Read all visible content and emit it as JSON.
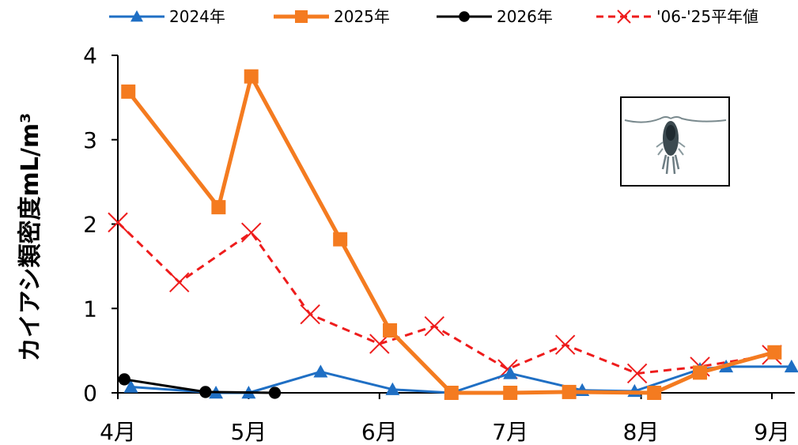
{
  "chart_data": {
    "type": "line",
    "ylabel": "カイアシ類密度mL/m³",
    "ylim": [
      0,
      4
    ],
    "yticks": [
      "0",
      "1",
      "2",
      "3",
      "4"
    ],
    "xticks": [
      "4月",
      "5月",
      "6月",
      "7月",
      "8月",
      "9月"
    ],
    "xlim": [
      4,
      9.2
    ],
    "legend_position": "top",
    "series": [
      {
        "name": "2024年",
        "color": "#1f6fc4",
        "marker": "triangle",
        "dash": false,
        "points": [
          [
            4.1,
            0.07
          ],
          [
            4.75,
            0.0
          ],
          [
            5.0,
            0.0
          ],
          [
            5.55,
            0.25
          ],
          [
            6.1,
            0.04
          ],
          [
            6.55,
            0.0
          ],
          [
            7.0,
            0.23
          ],
          [
            7.55,
            0.03
          ],
          [
            7.95,
            0.02
          ],
          [
            8.45,
            0.28
          ],
          [
            8.65,
            0.31
          ],
          [
            9.15,
            0.31
          ]
        ]
      },
      {
        "name": "2025年",
        "color": "#f47b20",
        "marker": "square",
        "dash": false,
        "points": [
          [
            4.08,
            3.57
          ],
          [
            4.77,
            2.2
          ],
          [
            5.02,
            3.75
          ],
          [
            5.7,
            1.82
          ],
          [
            6.08,
            0.74
          ],
          [
            6.55,
            0.0
          ],
          [
            7.0,
            0.0
          ],
          [
            7.45,
            0.01
          ],
          [
            8.1,
            0.0
          ],
          [
            8.45,
            0.24
          ],
          [
            9.02,
            0.48
          ]
        ]
      },
      {
        "name": "2026年",
        "color": "#000000",
        "marker": "circle",
        "dash": false,
        "points": [
          [
            4.05,
            0.16
          ],
          [
            4.67,
            0.01
          ],
          [
            5.2,
            0.0
          ]
        ]
      },
      {
        "name": "'06-'25平年値",
        "color": "#ee1c1c",
        "marker": "x",
        "dash": true,
        "points": [
          [
            4.0,
            2.02
          ],
          [
            4.47,
            1.31
          ],
          [
            5.02,
            1.9
          ],
          [
            5.47,
            0.93
          ],
          [
            6.0,
            0.58
          ],
          [
            6.42,
            0.79
          ],
          [
            6.98,
            0.28
          ],
          [
            7.42,
            0.57
          ],
          [
            7.97,
            0.23
          ],
          [
            8.45,
            0.31
          ],
          [
            9.0,
            0.45
          ]
        ]
      }
    ]
  }
}
